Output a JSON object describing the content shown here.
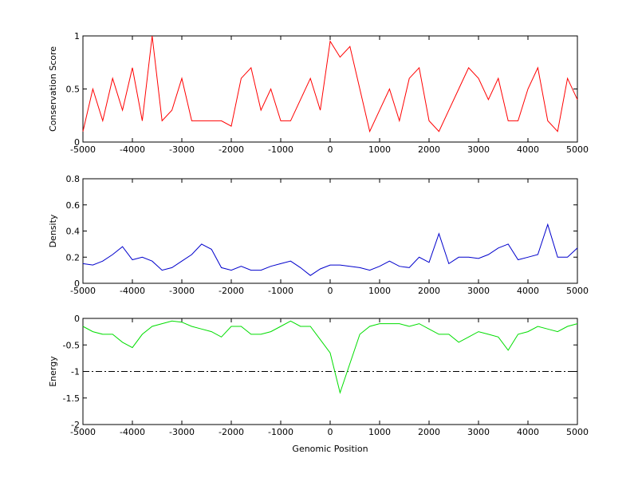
{
  "chart_data": [
    {
      "type": "line",
      "y_label": "Conservation Score",
      "x": [
        -5000,
        -4800,
        -4600,
        -4400,
        -4200,
        -4000,
        -3800,
        -3600,
        -3400,
        -3200,
        -3000,
        -2800,
        -2600,
        -2400,
        -2200,
        -2000,
        -1800,
        -1600,
        -1400,
        -1200,
        -1000,
        -800,
        -600,
        -400,
        -200,
        0,
        200,
        400,
        600,
        800,
        1000,
        1200,
        1400,
        1600,
        1800,
        2000,
        2200,
        2400,
        2600,
        2800,
        3000,
        3200,
        3400,
        3600,
        3800,
        4000,
        4200,
        4400,
        4600,
        4800,
        5000
      ],
      "series": [
        {
          "color": "#ff0000",
          "values": [
            0.1,
            0.5,
            0.2,
            0.6,
            0.3,
            0.7,
            0.2,
            1.0,
            0.2,
            0.3,
            0.6,
            0.2,
            0.2,
            0.2,
            0.2,
            0.15,
            0.6,
            0.7,
            0.3,
            0.5,
            0.2,
            0.2,
            0.4,
            0.6,
            0.3,
            0.95,
            0.8,
            0.9,
            0.5,
            0.1,
            0.3,
            0.5,
            0.2,
            0.6,
            0.7,
            0.2,
            0.1,
            0.3,
            0.5,
            0.7,
            0.6,
            0.4,
            0.6,
            0.2,
            0.2,
            0.5,
            0.7,
            0.2,
            0.1,
            0.6,
            0.4
          ]
        }
      ],
      "xlim": [
        -5000,
        5000
      ],
      "xticks": [
        -5000,
        -4000,
        -3000,
        -2000,
        -1000,
        0,
        1000,
        2000,
        3000,
        4000,
        5000
      ],
      "ylim": [
        0,
        1
      ],
      "yticks": [
        0,
        0.5,
        1
      ],
      "grid": false
    },
    {
      "type": "line",
      "y_label": "Density",
      "x": [
        -5000,
        -4800,
        -4600,
        -4400,
        -4200,
        -4000,
        -3800,
        -3600,
        -3400,
        -3200,
        -3000,
        -2800,
        -2600,
        -2400,
        -2200,
        -2000,
        -1800,
        -1600,
        -1400,
        -1200,
        -1000,
        -800,
        -600,
        -400,
        -200,
        0,
        200,
        400,
        600,
        800,
        1000,
        1200,
        1400,
        1600,
        1800,
        2000,
        2200,
        2400,
        2600,
        2800,
        3000,
        3200,
        3400,
        3600,
        3800,
        4000,
        4200,
        4400,
        4600,
        4800,
        5000
      ],
      "series": [
        {
          "color": "#0000cc",
          "values": [
            0.15,
            0.14,
            0.17,
            0.22,
            0.28,
            0.18,
            0.2,
            0.17,
            0.1,
            0.12,
            0.17,
            0.22,
            0.3,
            0.26,
            0.12,
            0.1,
            0.13,
            0.1,
            0.1,
            0.13,
            0.15,
            0.17,
            0.12,
            0.06,
            0.11,
            0.14,
            0.14,
            0.13,
            0.12,
            0.1,
            0.13,
            0.17,
            0.13,
            0.12,
            0.2,
            0.16,
            0.38,
            0.15,
            0.2,
            0.2,
            0.19,
            0.22,
            0.27,
            0.3,
            0.18,
            0.2,
            0.22,
            0.45,
            0.2,
            0.2,
            0.27
          ]
        }
      ],
      "xlim": [
        -5000,
        5000
      ],
      "xticks": [
        -5000,
        -4000,
        -3000,
        -2000,
        -1000,
        0,
        1000,
        2000,
        3000,
        4000,
        5000
      ],
      "ylim": [
        0,
        0.8
      ],
      "yticks": [
        0,
        0.2,
        0.4,
        0.6,
        0.8
      ],
      "grid": false
    },
    {
      "type": "line",
      "y_label": "Energy",
      "x_label": "Genomic Position",
      "x": [
        -5000,
        -4800,
        -4600,
        -4400,
        -4200,
        -4000,
        -3800,
        -3600,
        -3400,
        -3200,
        -3000,
        -2800,
        -2600,
        -2400,
        -2200,
        -2000,
        -1800,
        -1600,
        -1400,
        -1200,
        -1000,
        -800,
        -600,
        -400,
        -200,
        0,
        200,
        400,
        600,
        800,
        1000,
        1200,
        1400,
        1600,
        1800,
        2000,
        2200,
        2400,
        2600,
        2800,
        3000,
        3200,
        3400,
        3600,
        3800,
        4000,
        4200,
        4400,
        4600,
        4800,
        5000
      ],
      "series": [
        {
          "color": "#00dd00",
          "values": [
            -0.15,
            -0.25,
            -0.3,
            -0.3,
            -0.45,
            -0.55,
            -0.3,
            -0.15,
            -0.1,
            -0.05,
            -0.07,
            -0.15,
            -0.2,
            -0.25,
            -0.35,
            -0.15,
            -0.15,
            -0.3,
            -0.3,
            -0.25,
            -0.15,
            -0.05,
            -0.15,
            -0.15,
            -0.4,
            -0.65,
            -1.4,
            -0.85,
            -0.3,
            -0.15,
            -0.1,
            -0.1,
            -0.1,
            -0.15,
            -0.1,
            -0.2,
            -0.3,
            -0.3,
            -0.45,
            -0.35,
            -0.25,
            -0.3,
            -0.35,
            -0.6,
            -0.3,
            -0.25,
            -0.15,
            -0.2,
            -0.25,
            -0.15,
            -0.1
          ]
        }
      ],
      "reference_line": -1,
      "xlim": [
        -5000,
        5000
      ],
      "xticks": [
        -5000,
        -4000,
        -3000,
        -2000,
        -1000,
        0,
        1000,
        2000,
        3000,
        4000,
        5000
      ],
      "ylim": [
        -2,
        0
      ],
      "yticks": [
        0,
        -0.5,
        -1,
        -1.5,
        -2
      ],
      "grid": false
    }
  ]
}
